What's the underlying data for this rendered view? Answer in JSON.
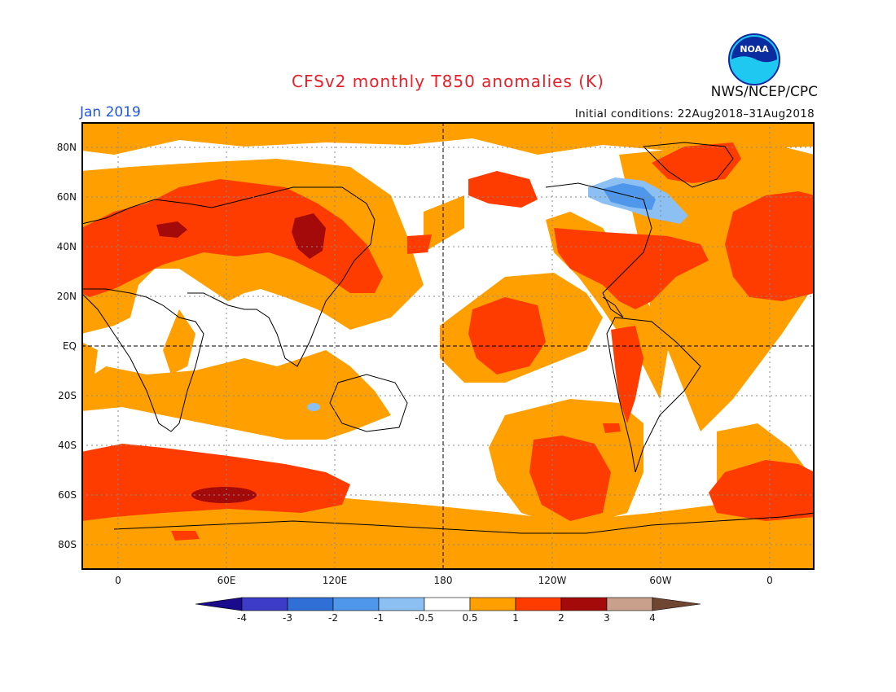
{
  "header": {
    "title": "CFSv2 monthly T850 anomalies (K)",
    "agency": "NWS/NCEP/CPC",
    "month": "Jan 2019",
    "initial_conditions": "Initial conditions: 22Aug2018–31Aug2018"
  },
  "logo": {
    "text": "NOAA",
    "icon": "noaa-logo-icon"
  },
  "axes": {
    "lat_labels": [
      "80N",
      "60N",
      "40N",
      "20N",
      "EQ",
      "20S",
      "40S",
      "60S",
      "80S"
    ],
    "lon_labels": [
      "0",
      "60E",
      "120E",
      "180",
      "120W",
      "60W",
      "0"
    ]
  },
  "colorbar": {
    "labels": [
      "-4",
      "-3",
      "-2",
      "-1",
      "-0.5",
      "0.5",
      "1",
      "2",
      "3",
      "4"
    ],
    "colors": [
      "#1a0a8c",
      "#3c3cc8",
      "#2f6fd6",
      "#4f97ea",
      "#8cc0f2",
      "#ffffff",
      "#ffa000",
      "#ff3c00",
      "#a50a0a",
      "#c8a08c",
      "#6e4632"
    ]
  },
  "colors": {
    "title": "#e8202a",
    "month": "#1f55e0",
    "plus05_1": "#ffa000",
    "plus1_2": "#ff3c00",
    "plus2_3": "#a50a0a",
    "minus05_1": "#8cc0f2",
    "minus1_2": "#4f97ea"
  }
}
